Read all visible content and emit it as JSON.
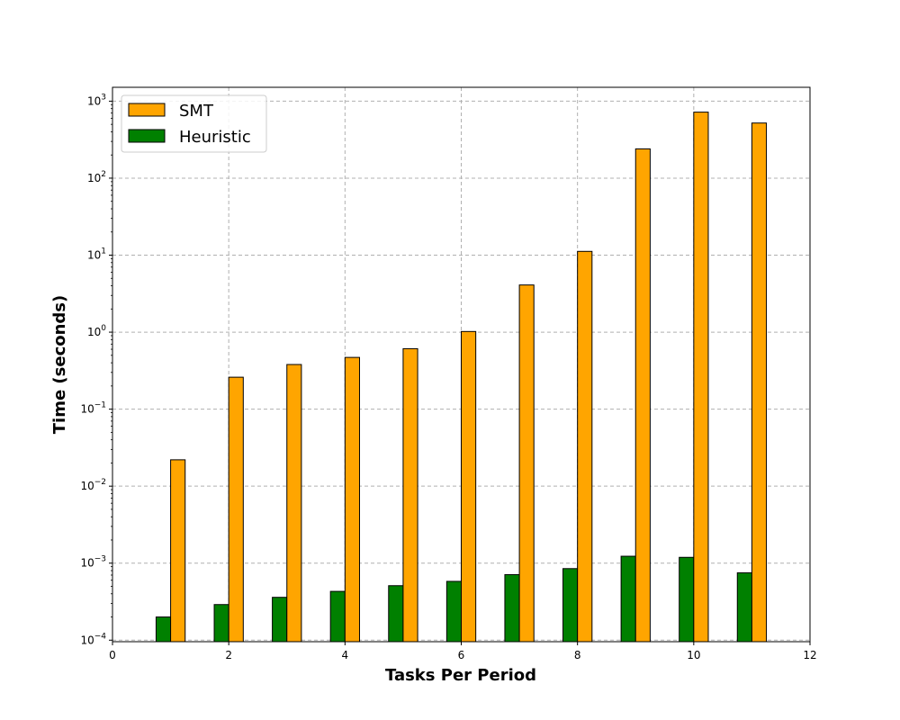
{
  "chart_data": {
    "type": "bar",
    "xlabel": "Tasks Per Period",
    "ylabel": "Time (seconds)",
    "xlim": [
      0,
      12
    ],
    "ylim_log10": [
      -4.02,
      3.18
    ],
    "y_scale": "log",
    "grid": true,
    "legend_position": "upper-left",
    "x_ticks": [
      0,
      2,
      4,
      6,
      8,
      10,
      12
    ],
    "y_ticks": [
      {
        "exp": -4,
        "label": "10",
        "sup": "−4"
      },
      {
        "exp": -3,
        "label": "10",
        "sup": "−3"
      },
      {
        "exp": -2,
        "label": "10",
        "sup": "−2"
      },
      {
        "exp": -1,
        "label": "10",
        "sup": "−1"
      },
      {
        "exp": 0,
        "label": "10",
        "sup": "0"
      },
      {
        "exp": 1,
        "label": "10",
        "sup": "1"
      },
      {
        "exp": 2,
        "label": "10",
        "sup": "2"
      },
      {
        "exp": 3,
        "label": "10",
        "sup": "3"
      }
    ],
    "categories": [
      1,
      2,
      3,
      4,
      5,
      6,
      7,
      8,
      9,
      10,
      11
    ],
    "series": [
      {
        "name": "SMT",
        "color": "#FFA500",
        "values": [
          0.022,
          0.26,
          0.38,
          0.47,
          0.61,
          1.02,
          4.1,
          11.2,
          240,
          720,
          520
        ]
      },
      {
        "name": "Heuristic",
        "color": "#008000",
        "values": [
          0.0002,
          0.00029,
          0.00036,
          0.00043,
          0.00051,
          0.00058,
          0.00071,
          0.00085,
          0.00123,
          0.00119,
          0.00075
        ]
      }
    ]
  }
}
